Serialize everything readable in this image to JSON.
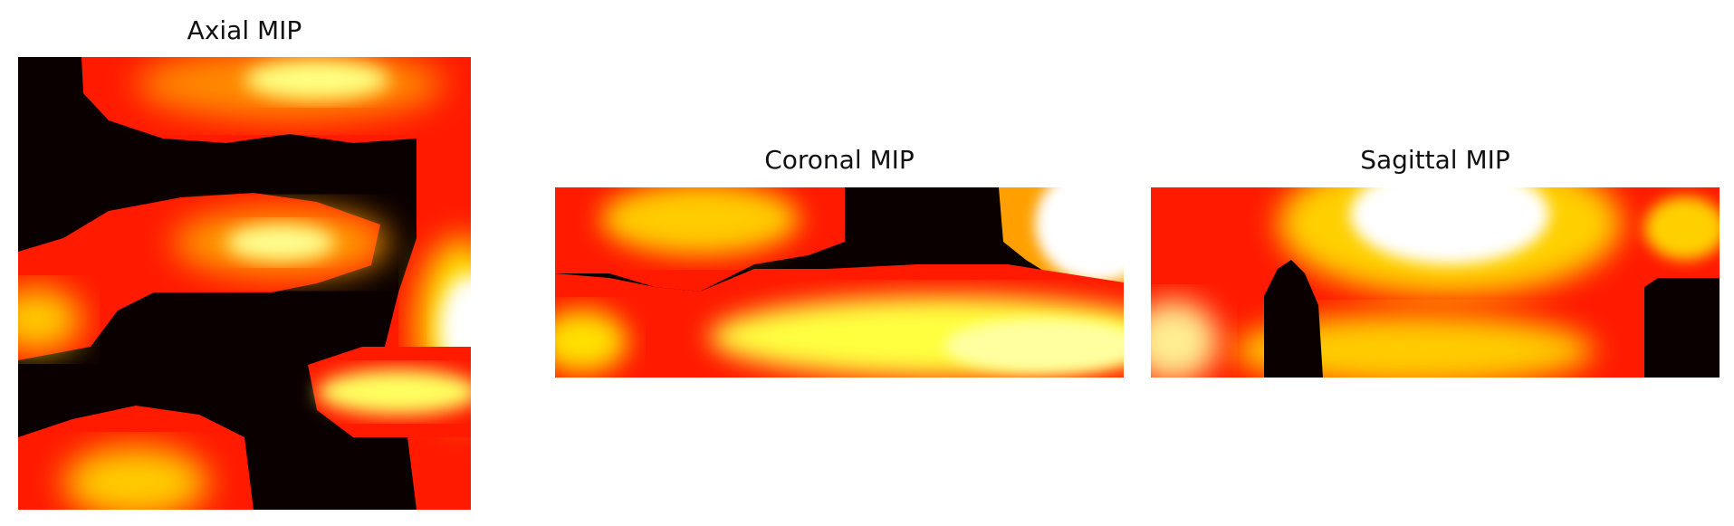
{
  "panels": {
    "axial": {
      "title": "Axial MIP"
    },
    "coronal": {
      "title": "Coronal MIP"
    },
    "sagittal": {
      "title": "Sagittal MIP"
    }
  },
  "colormap": "hot",
  "colors": {
    "black": "#0b0000",
    "red": "#ff1a00",
    "orange": "#ff7a00",
    "yellow": "#ffe800",
    "white": "#ffffff"
  }
}
